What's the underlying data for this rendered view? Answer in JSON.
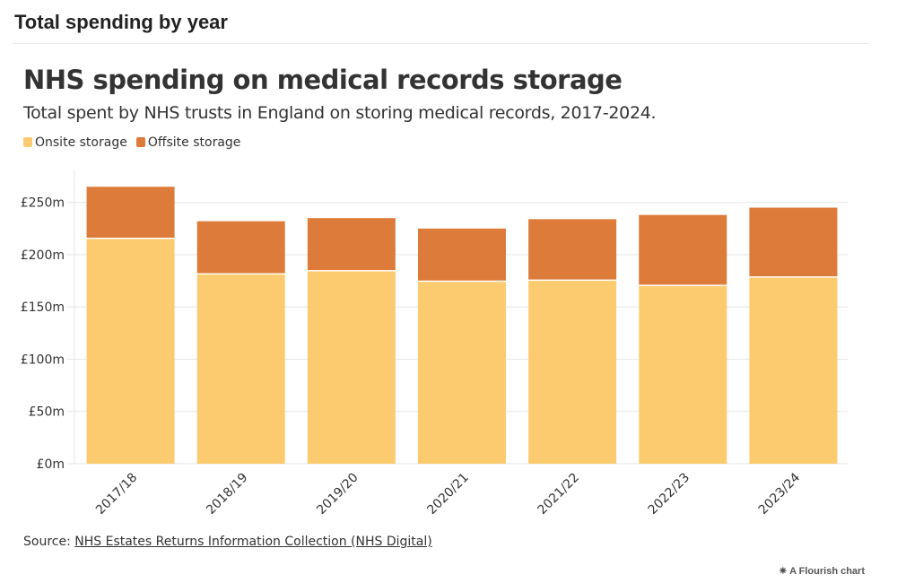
{
  "header": {
    "title": "Total spending by year"
  },
  "chart_data": {
    "type": "bar",
    "stacked": true,
    "title": "NHS spending on medical records storage",
    "subtitle": "Total spent by NHS trusts in England on storing medical records, 2017-2024.",
    "categories": [
      "2017/18",
      "2018/19",
      "2019/20",
      "2020/21",
      "2021/22",
      "2022/23",
      "2023/24"
    ],
    "series": [
      {
        "name": "Onsite storage",
        "color": "#fccb6f",
        "values": [
          215,
          181,
          184,
          174,
          175,
          170,
          178
        ]
      },
      {
        "name": "Offsite storage",
        "color": "#dd7b3a",
        "values": [
          50,
          51,
          51,
          51,
          59,
          68,
          67
        ]
      }
    ],
    "ylim": [
      0,
      250
    ],
    "yticks": [
      0,
      50,
      100,
      150,
      200,
      250
    ],
    "ytick_labels": [
      "£0m",
      "£50m",
      "£100m",
      "£150m",
      "£200m",
      "£250m"
    ],
    "grid": true,
    "legend": "top-left",
    "source_label": "Source: ",
    "source_link": "NHS Estates Returns Information Collection (NHS Digital)"
  },
  "footer": {
    "credit": "A Flourish chart"
  }
}
